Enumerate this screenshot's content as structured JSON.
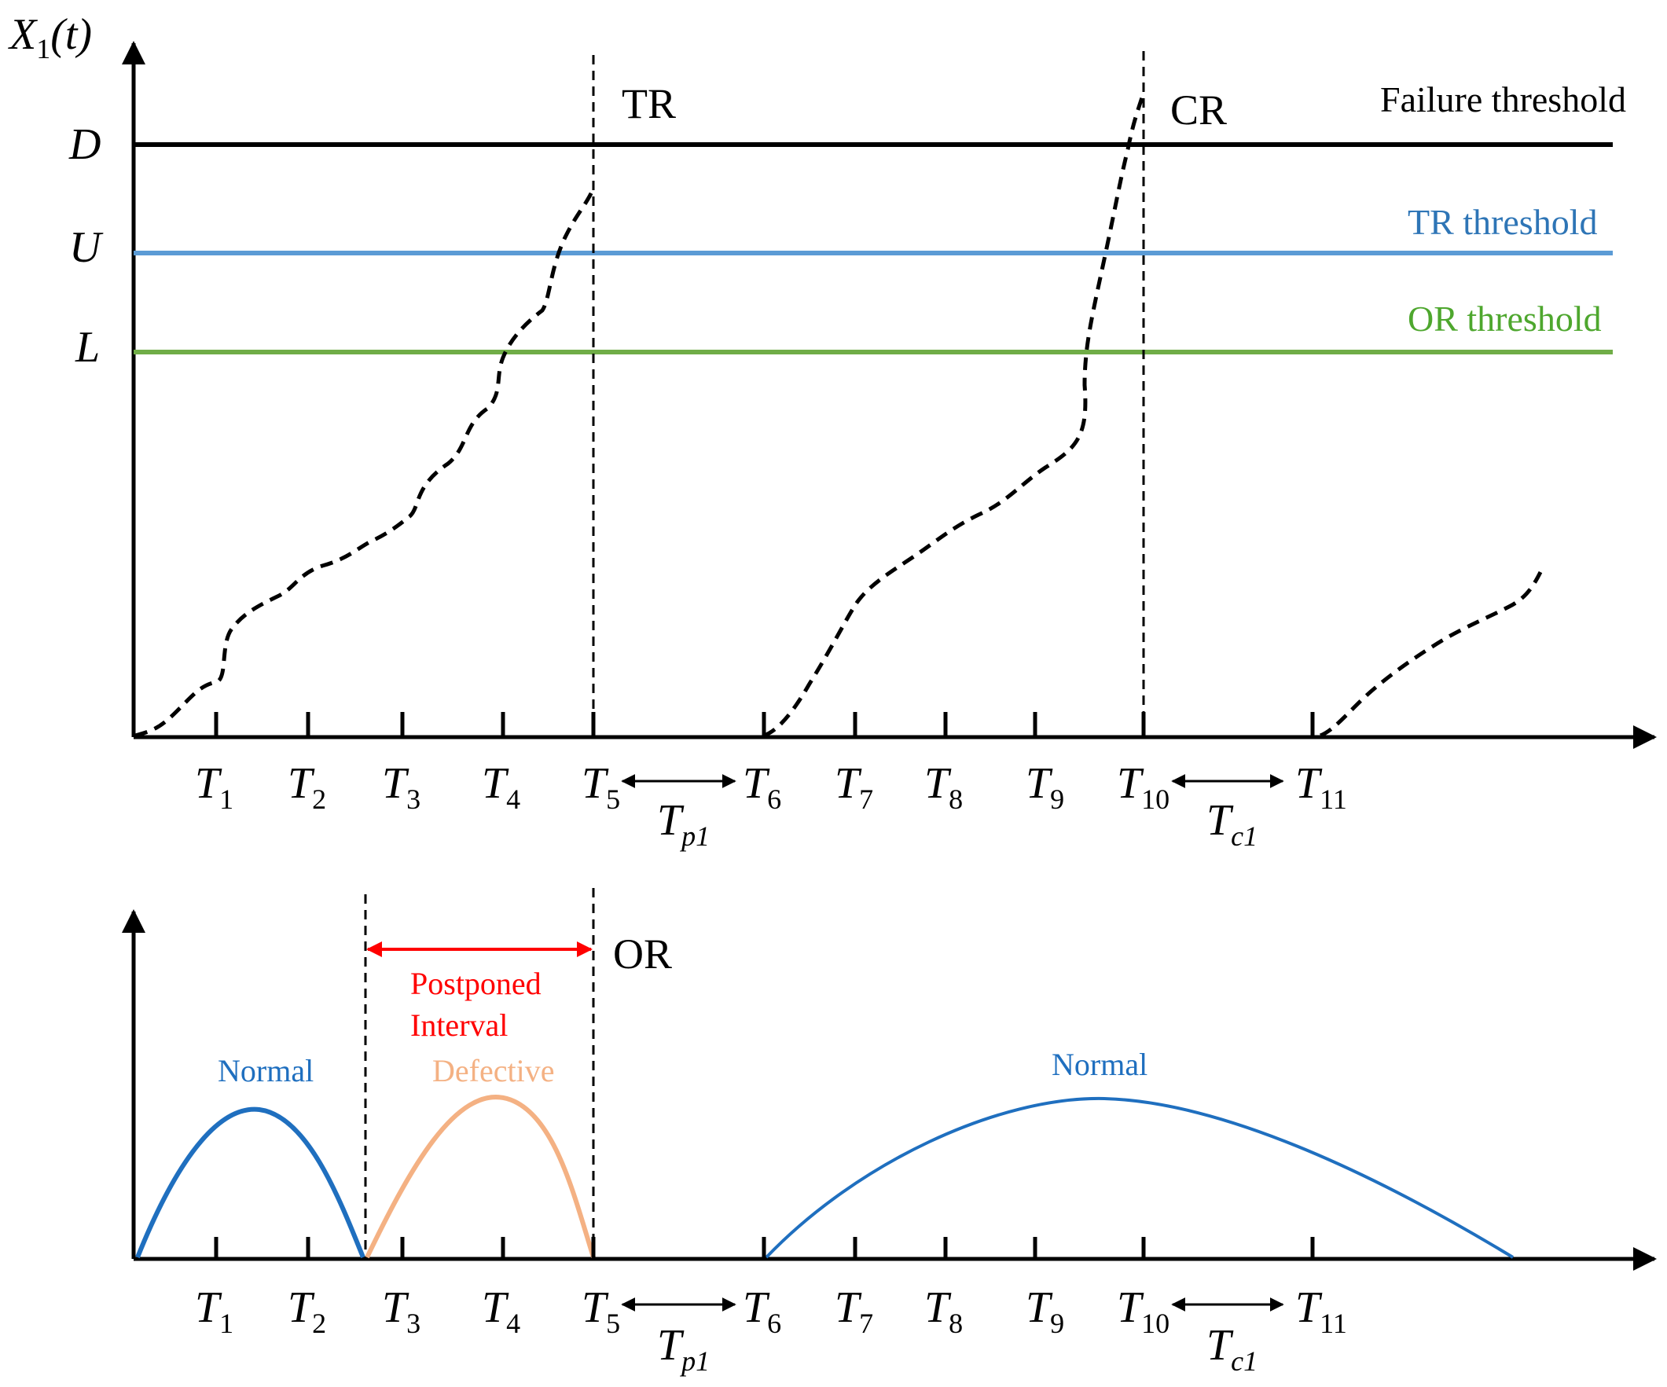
{
  "top_panel": {
    "y_axis_label": {
      "main": "X",
      "sub": "1",
      "arg": "(t)"
    },
    "levels": [
      {
        "symbol": "D",
        "label": "Failure threshold",
        "color": "#000000"
      },
      {
        "symbol": "U",
        "label": "TR threshold",
        "color": "#5b9bd5"
      },
      {
        "symbol": "L",
        "label": "OR threshold",
        "color": "#70ad47"
      }
    ],
    "events": [
      "TR",
      "CR"
    ],
    "ticks": [
      "1",
      "2",
      "3",
      "4",
      "5",
      "6",
      "7",
      "8",
      "9",
      "10",
      "11"
    ],
    "intervals": [
      {
        "main": "T",
        "sub": "p1"
      },
      {
        "main": "T",
        "sub": "c1"
      }
    ]
  },
  "bottom_panel": {
    "event": "OR",
    "postponed_label": [
      "Postponed",
      "Interval"
    ],
    "phases": [
      {
        "label": "Normal",
        "color": "#1f6fbf"
      },
      {
        "label": "Defective",
        "color": "#f4b183"
      },
      {
        "label": "Normal",
        "color": "#1f6fbf"
      }
    ],
    "ticks": [
      "1",
      "2",
      "3",
      "4",
      "5",
      "6",
      "7",
      "8",
      "9",
      "10",
      "11"
    ],
    "intervals": [
      {
        "main": "T",
        "sub": "p1"
      },
      {
        "main": "T",
        "sub": "c1"
      }
    ]
  },
  "colors": {
    "axis": "#000000",
    "arrow_red": "#ff0000",
    "label_red": "#ff0000"
  }
}
